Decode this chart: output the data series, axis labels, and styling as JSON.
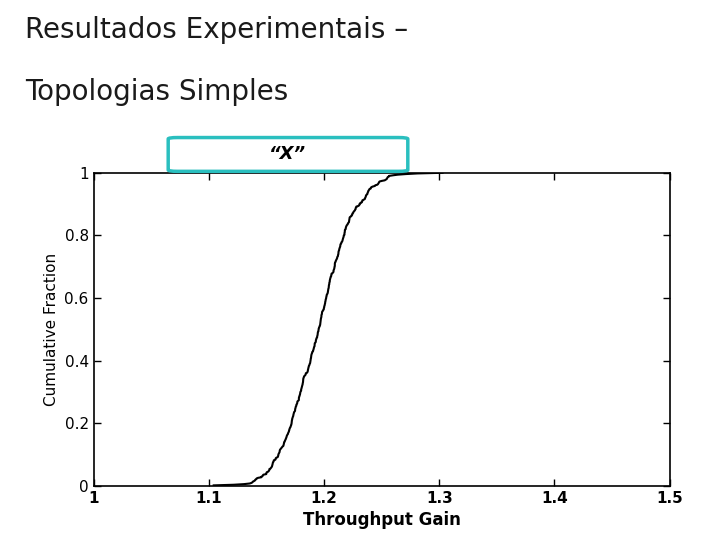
{
  "title_line1": "Resultados Experimentais –",
  "title_line2": "Topologias Simples",
  "subtitle": "“X”",
  "xlabel": "Throughput Gain",
  "ylabel": "Cumulative Fraction",
  "xlim": [
    1.0,
    1.5
  ],
  "ylim": [
    0.0,
    1.0
  ],
  "xticks": [
    1.0,
    1.1,
    1.2,
    1.3,
    1.4,
    1.5
  ],
  "xtick_labels": [
    "1",
    "1.1",
    "1.2",
    "1.3",
    "1.4",
    "1.5"
  ],
  "yticks": [
    0,
    0.2,
    0.4,
    0.6,
    0.8,
    1
  ],
  "ytick_labels": [
    "0",
    "0.2",
    "0.4",
    "0.6",
    "0.8",
    "1"
  ],
  "line_color": "#000000",
  "bg_color": "#ffffff",
  "header_green_color": "#1a6b5a",
  "header_black_color": "#000000",
  "title_color": "#1a1a1a",
  "subtitle_box_color": "#2abfbf",
  "subtitle_text_color": "#000000",
  "cdf_mu": 1.195,
  "cdf_sigma": 0.028,
  "cdf_n": 500,
  "cdf_seed": 42
}
